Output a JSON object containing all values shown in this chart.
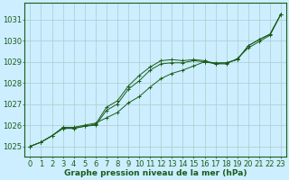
{
  "title": "Graphe pression niveau de la mer (hPa)",
  "background_color": "#cceeff",
  "grid_color": "#aacccc",
  "line_color": "#1a5c1a",
  "x_ticks": [
    0,
    1,
    2,
    3,
    4,
    5,
    6,
    7,
    8,
    9,
    10,
    11,
    12,
    13,
    14,
    15,
    16,
    17,
    18,
    19,
    20,
    21,
    22,
    23
  ],
  "ylim": [
    1024.5,
    1031.8
  ],
  "yticks": [
    1025,
    1026,
    1027,
    1028,
    1029,
    1030,
    1031
  ],
  "line1": [
    1025.0,
    1025.2,
    1025.5,
    1025.9,
    1025.9,
    1026.0,
    1026.1,
    1026.35,
    1026.6,
    1027.05,
    1027.35,
    1027.8,
    1028.2,
    1028.45,
    1028.6,
    1028.8,
    1029.0,
    1028.9,
    1028.9,
    1029.15,
    1029.65,
    1029.95,
    1030.25,
    1031.25
  ],
  "line2": [
    1025.0,
    1025.2,
    1025.5,
    1025.85,
    1025.85,
    1025.95,
    1026.05,
    1026.85,
    1027.15,
    1027.85,
    1028.35,
    1028.75,
    1029.05,
    1029.1,
    1029.05,
    1029.1,
    1029.05,
    1028.9,
    1028.95,
    1029.1,
    1029.75,
    1030.05,
    1030.3,
    1031.25
  ],
  "line3": [
    1025.0,
    1025.2,
    1025.5,
    1025.85,
    1025.85,
    1025.95,
    1026.0,
    1026.7,
    1027.0,
    1027.7,
    1028.1,
    1028.6,
    1028.9,
    1028.95,
    1028.95,
    1029.05,
    1029.0,
    1028.95,
    1028.95,
    1029.1,
    1029.75,
    1030.05,
    1030.3,
    1031.25
  ],
  "xlabel_fontsize": 6,
  "ylabel_fontsize": 6,
  "title_fontsize": 6.5
}
